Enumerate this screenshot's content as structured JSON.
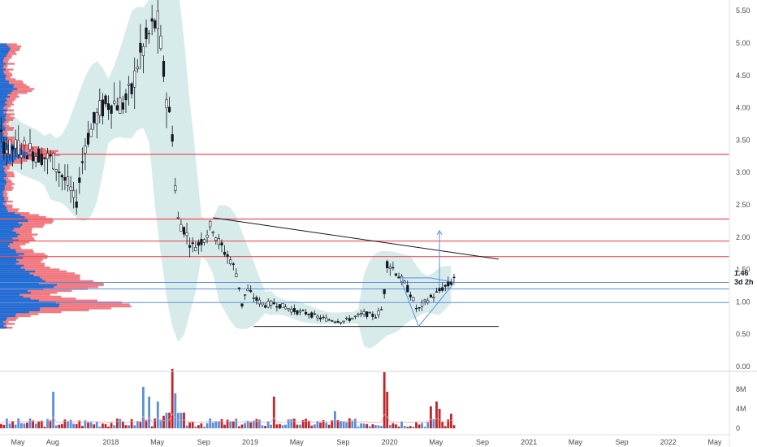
{
  "chart_data": {
    "type": "candlestick",
    "price_axis": {
      "ticks": [
        "5.50",
        "5.00",
        "4.50",
        "4.00",
        "3.50",
        "3.00",
        "2.50",
        "2.00",
        "1.50",
        "1.00",
        "0.50",
        "0.00"
      ],
      "tick_values": [
        5.5,
        5.0,
        4.5,
        4.0,
        3.5,
        3.0,
        2.5,
        2.0,
        1.5,
        1.0,
        0.5,
        0.0
      ],
      "range": [
        -0.05,
        5.6
      ],
      "last_price_label": "1.46",
      "countdown_label": "3d 2h"
    },
    "volume_axis": {
      "ticks": [
        "8M",
        "4M",
        "0"
      ],
      "tick_values": [
        8,
        4,
        0
      ],
      "range": [
        0,
        13
      ]
    },
    "time_axis": {
      "labels": [
        "May",
        "Aug",
        "2018",
        "May",
        "Sep",
        "2019",
        "May",
        "Sep",
        "2020",
        "May",
        "Sep",
        "2021",
        "May",
        "Sep",
        "2022",
        "May"
      ],
      "label_months": [
        4,
        7,
        12,
        16,
        20,
        24,
        28,
        32,
        36,
        40,
        44,
        48,
        52,
        56,
        60,
        64
      ]
    },
    "horizontal_levels": {
      "red": [
        3.28,
        2.28,
        1.94,
        1.7
      ],
      "blue": [
        1.3,
        1.2,
        0.99
      ]
    },
    "trendlines": {
      "black_upper": [
        [
          20.8,
          2.3
        ],
        [
          45.4,
          1.66
        ]
      ],
      "black_base": [
        [
          24.3,
          0.62
        ],
        [
          45.4,
          0.62
        ]
      ],
      "blue_triangle": [
        [
          36.9,
          1.37
        ],
        [
          39.5,
          1.37
        ],
        [
          41.6,
          1.3
        ],
        [
          38.5,
          0.62
        ]
      ],
      "projection_arrow": [
        [
          40.3,
          1.22
        ],
        [
          40.3,
          2.1
        ]
      ]
    },
    "colors": {
      "up": "#131722",
      "down": "#131722",
      "volume_up": "#5a8fd8",
      "volume_down": "#c0262b",
      "red_level": "#ef4d55",
      "blue_level": "#5b8fe0",
      "band": "#c9e6e3",
      "profile_blue": "#1e6ed8",
      "profile_red": "#f06a72"
    },
    "grid": false
  }
}
